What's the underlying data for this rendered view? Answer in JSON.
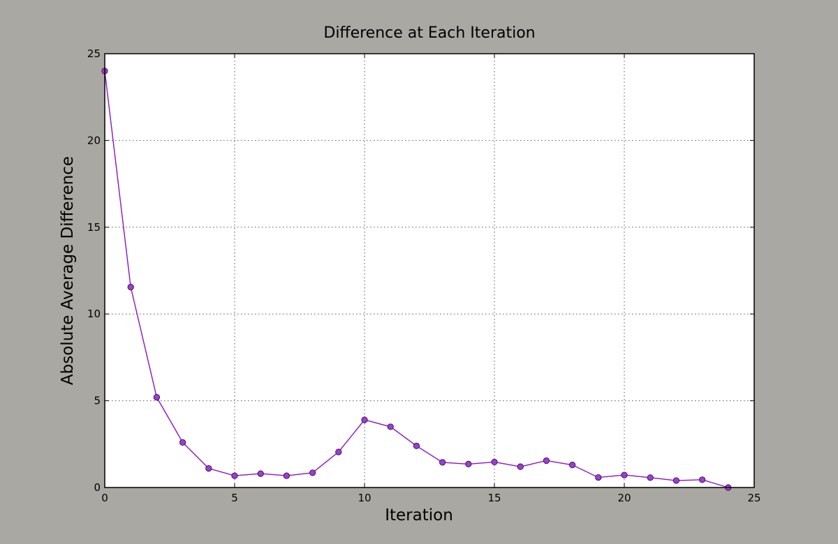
{
  "chart_data": {
    "type": "line",
    "title": "Difference at Each Iteration",
    "xlabel": "Iteration",
    "ylabel": "Absolute Average Difference",
    "xlim": [
      0,
      25
    ],
    "ylim": [
      0,
      25
    ],
    "xticks": [
      0,
      5,
      10,
      15,
      20,
      25
    ],
    "yticks": [
      0,
      5,
      10,
      15,
      20,
      25
    ],
    "grid": true,
    "series": [
      {
        "color": "#8b14c4",
        "marker_color": "#9b3fd0",
        "x": [
          0,
          1,
          2,
          3,
          4,
          5,
          6,
          7,
          8,
          9,
          10,
          11,
          12,
          13,
          14,
          15,
          16,
          17,
          18,
          19,
          20,
          21,
          22,
          23,
          24
        ],
        "y": [
          24.0,
          11.55,
          5.2,
          2.6,
          1.1,
          0.68,
          0.8,
          0.68,
          0.85,
          2.05,
          3.9,
          3.5,
          2.4,
          1.45,
          1.35,
          1.47,
          1.2,
          1.55,
          1.3,
          0.58,
          0.72,
          0.57,
          0.4,
          0.45,
          0.0
        ]
      }
    ]
  }
}
